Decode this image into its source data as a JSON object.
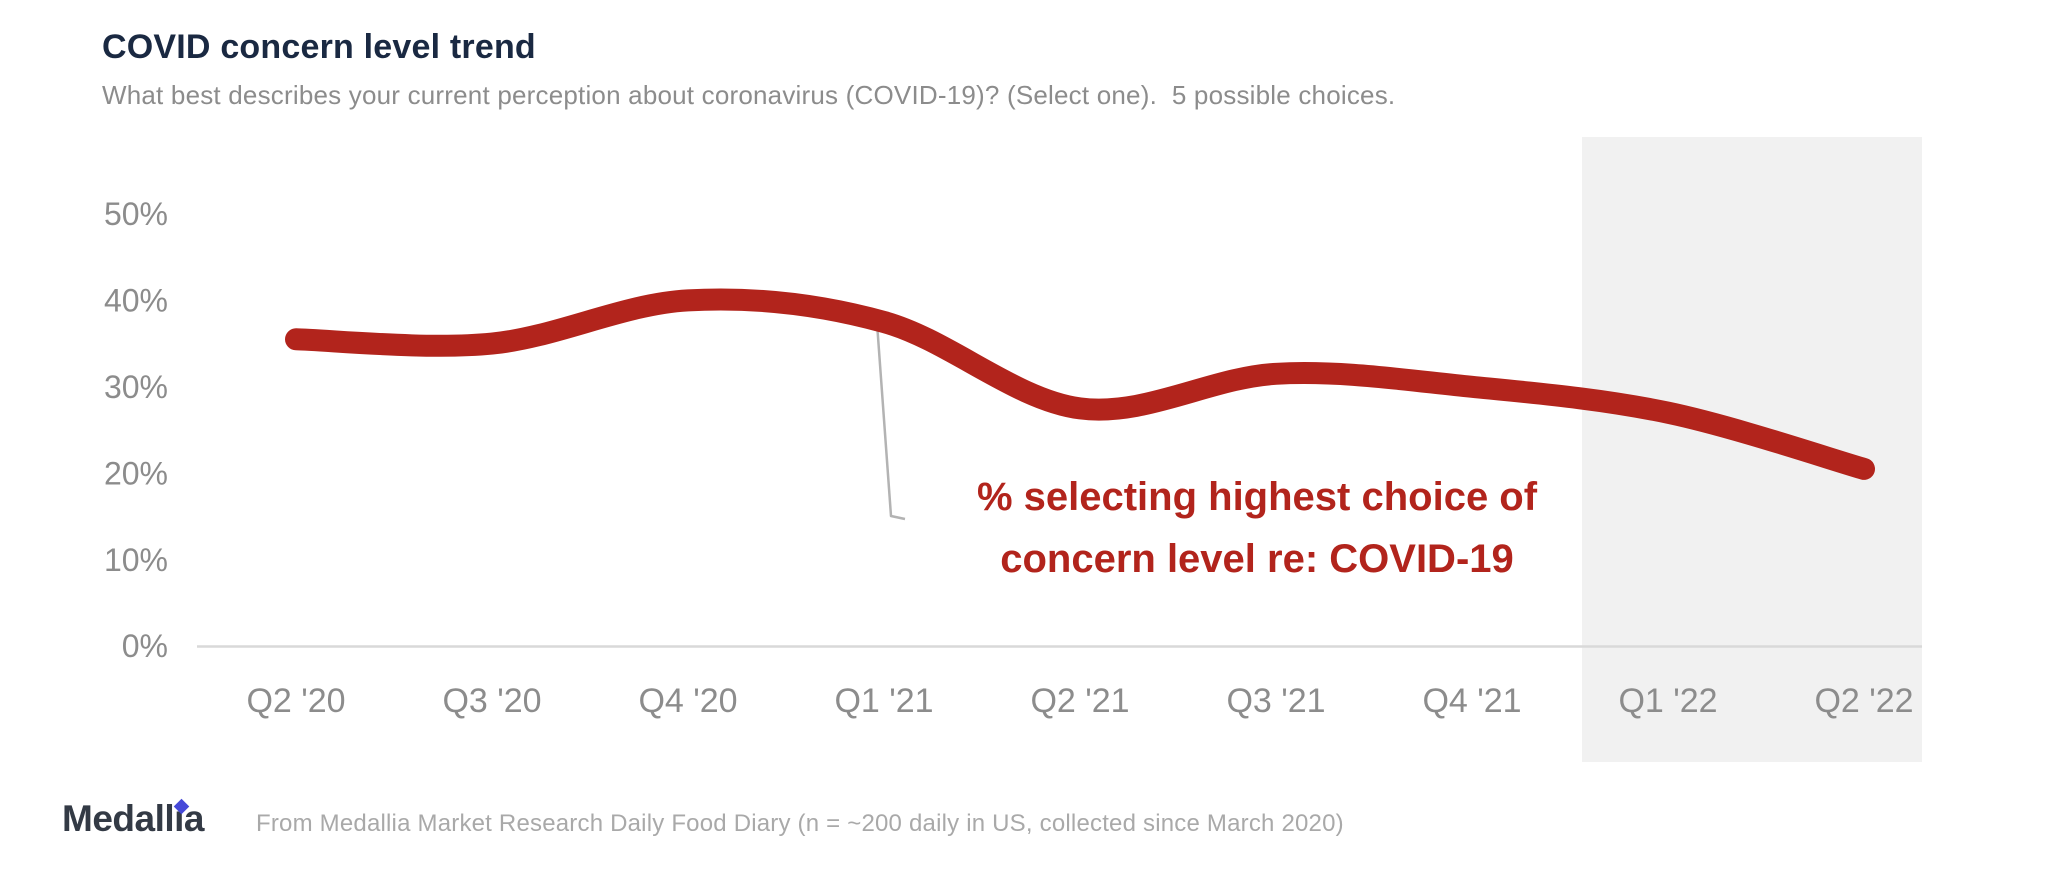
{
  "header": {
    "title": "COVID concern level trend",
    "subtitle": "What best describes your current perception about coronavirus (COVID-19)? (Select one).  5 possible choices."
  },
  "chart_data": {
    "type": "line",
    "categories": [
      "Q2 '20",
      "Q3 '20",
      "Q4 '20",
      "Q1 '21",
      "Q2 '21",
      "Q3 '21",
      "Q4 '21",
      "Q1 '22",
      "Q2 '22"
    ],
    "values": [
      35.5,
      35,
      40,
      37.5,
      27.5,
      31.5,
      30,
      27,
      20.5
    ],
    "unit": "%",
    "title": "COVID concern level trend",
    "xlabel": "",
    "ylabel": "",
    "ylim": [
      0,
      55
    ],
    "y_ticks": [
      50,
      40,
      30,
      20,
      10,
      0
    ],
    "y_tick_labels": [
      "50%",
      "40%",
      "30%",
      "20%",
      "10%",
      "0%"
    ],
    "grid": "baseline only",
    "legend": "none",
    "line_color": "#b2241c",
    "line_style": "smooth, thick, round caps",
    "annotation": {
      "text_lines": [
        "% selecting highest choice of",
        "concern level re: COVID-19"
      ],
      "color": "#b2241c",
      "points_to_category": "Q1 '21"
    },
    "highlight_region": {
      "categories": [
        "Q1 '22",
        "Q2 '22"
      ],
      "color": "#f1f1f1"
    }
  },
  "footer": {
    "logo_text": "Medallia",
    "source_text": "From Medallia Market Research Daily Food Diary (n = ~200 daily in US, collected since March 2020)"
  }
}
